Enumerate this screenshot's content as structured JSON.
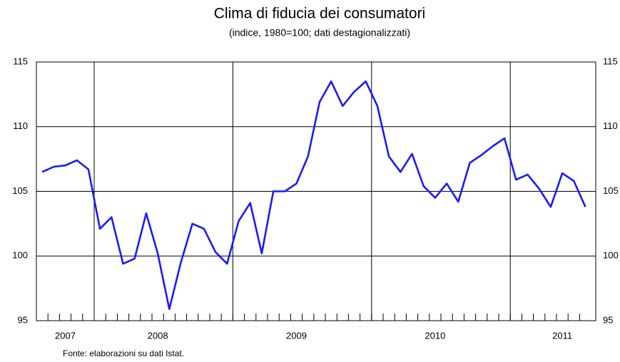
{
  "chart_data": {
    "type": "line",
    "title": "Clima di fiducia dei consumatori",
    "subtitle": "(indice, 1980=100; dati destagionalizzati)",
    "source": "Fonte: elaborazioni su dati Istat.",
    "categories": [
      null,
      null,
      "2007",
      null,
      null,
      null,
      null,
      null,
      null,
      null,
      "2008",
      null,
      null,
      null,
      null,
      null,
      null,
      null,
      null,
      null,
      null,
      null,
      "2009",
      null,
      null,
      null,
      null,
      null,
      null,
      null,
      null,
      null,
      null,
      null,
      "2010",
      null,
      null,
      null,
      null,
      null,
      null,
      null,
      null,
      null,
      null,
      "2011",
      null,
      null
    ],
    "series": [
      {
        "name": "Clima di fiducia",
        "color": "#1a1aff",
        "values": [
          106.5,
          106.9,
          107.0,
          107.4,
          106.7,
          102.1,
          103.0,
          99.4,
          99.8,
          103.3,
          100.2,
          95.9,
          99.5,
          102.5,
          102.1,
          100.3,
          99.4,
          102.7,
          104.1,
          100.2,
          105.0,
          105.0,
          105.6,
          107.7,
          111.9,
          113.5,
          111.6,
          112.7,
          113.5,
          111.6,
          107.7,
          106.5,
          107.9,
          105.4,
          104.5,
          105.6,
          104.2,
          107.2,
          107.8,
          108.5,
          109.1,
          105.9,
          106.3,
          105.2,
          103.8,
          106.4,
          105.8,
          103.8
        ]
      }
    ],
    "ylim": [
      95,
      115
    ],
    "yticks": [
      95,
      100,
      105,
      110,
      115
    ],
    "grid": true
  }
}
